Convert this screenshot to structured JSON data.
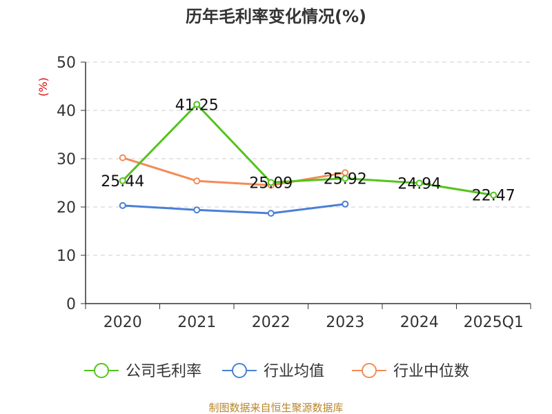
{
  "chart_data": {
    "type": "line",
    "title": "历年毛利率变化情况(%)",
    "ylabel": "(%)",
    "categories": [
      "2020",
      "2021",
      "2022",
      "2023",
      "2024",
      "2025Q1"
    ],
    "yticks": [
      "0",
      "10",
      "20",
      "30",
      "40",
      "50"
    ],
    "ylim": [
      0,
      50
    ],
    "grid": true,
    "legend_position": "bottom",
    "series": [
      {
        "name": "公司毛利率",
        "color": "#52c41a",
        "values": [
          25.44,
          41.25,
          25.09,
          25.92,
          24.94,
          22.47
        ],
        "labels": [
          "25.44",
          "41.25",
          "25.09",
          "25.92",
          "24.94",
          "22.47"
        ]
      },
      {
        "name": "行业均值",
        "color": "#4a7fd6",
        "values": [
          20.3,
          19.4,
          18.7,
          20.6,
          null,
          null
        ]
      },
      {
        "name": "行业中位数",
        "color": "#f28c56",
        "values": [
          30.2,
          25.4,
          24.5,
          27.1,
          null,
          null
        ]
      }
    ],
    "source": "制图数据来自恒生聚源数据库",
    "colors": {
      "unit_label": "#e00000",
      "source": "#b8862b",
      "axis": "#333333",
      "grid": "#cccccc"
    }
  }
}
